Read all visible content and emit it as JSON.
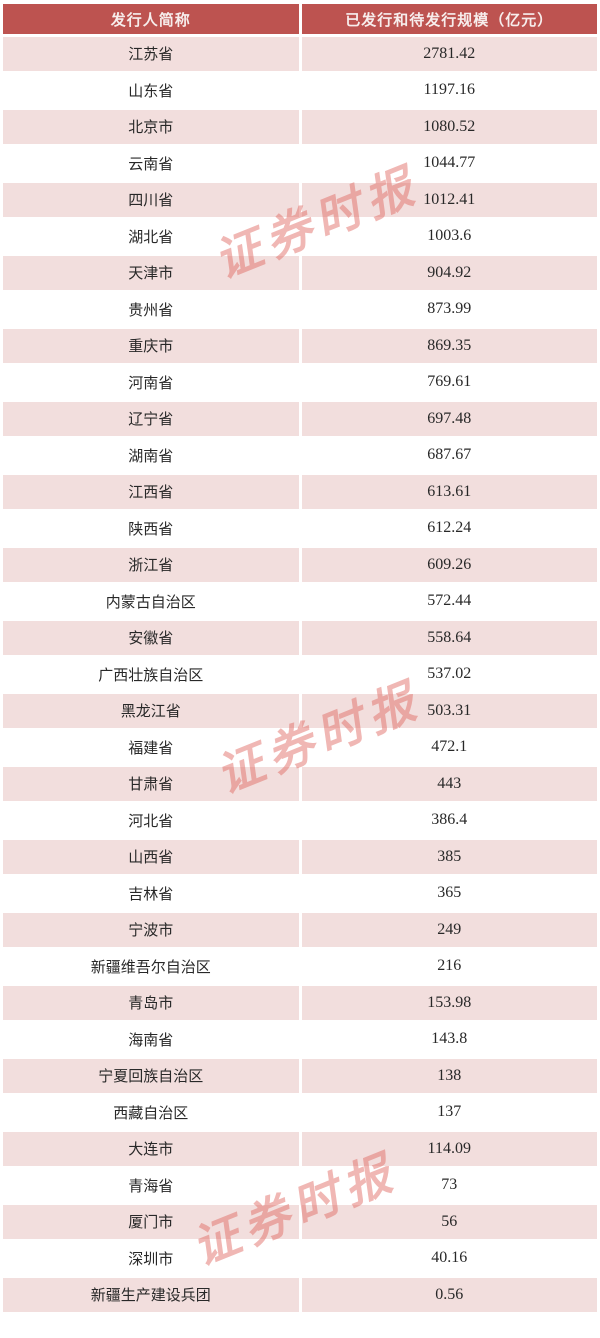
{
  "chart_data": {
    "type": "table",
    "columns": [
      "发行人简称",
      "已发行和待发行规模（亿元）"
    ],
    "rows": [
      [
        "江苏省",
        "2781.42"
      ],
      [
        "山东省",
        "1197.16"
      ],
      [
        "北京市",
        "1080.52"
      ],
      [
        "云南省",
        "1044.77"
      ],
      [
        "四川省",
        "1012.41"
      ],
      [
        "湖北省",
        "1003.6"
      ],
      [
        "天津市",
        "904.92"
      ],
      [
        "贵州省",
        "873.99"
      ],
      [
        "重庆市",
        "869.35"
      ],
      [
        "河南省",
        "769.61"
      ],
      [
        "辽宁省",
        "697.48"
      ],
      [
        "湖南省",
        "687.67"
      ],
      [
        "江西省",
        "613.61"
      ],
      [
        "陕西省",
        "612.24"
      ],
      [
        "浙江省",
        "609.26"
      ],
      [
        "内蒙古自治区",
        "572.44"
      ],
      [
        "安徽省",
        "558.64"
      ],
      [
        "广西壮族自治区",
        "537.02"
      ],
      [
        "黑龙江省",
        "503.31"
      ],
      [
        "福建省",
        "472.1"
      ],
      [
        "甘肃省",
        "443"
      ],
      [
        "河北省",
        "386.4"
      ],
      [
        "山西省",
        "385"
      ],
      [
        "吉林省",
        "365"
      ],
      [
        "宁波市",
        "249"
      ],
      [
        "新疆维吾尔自治区",
        "216"
      ],
      [
        "青岛市",
        "153.98"
      ],
      [
        "海南省",
        "143.8"
      ],
      [
        "宁夏回族自治区",
        "138"
      ],
      [
        "西藏自治区",
        "137"
      ],
      [
        "大连市",
        "114.09"
      ],
      [
        "青海省",
        "73"
      ],
      [
        "厦门市",
        "56"
      ],
      [
        "深圳市",
        "40.16"
      ],
      [
        "新疆生产建设兵团",
        "0.56"
      ]
    ],
    "layout": {
      "header_style": "dark-red band, white bold text",
      "row_striping": "odd rows light pink, even rows white",
      "alignment": "all cells centered"
    }
  },
  "watermark": {
    "text": "证券时报"
  },
  "colors": {
    "header_bg": "#bd5350",
    "header_text": "#f7edec",
    "row_pink": "#f2dedd",
    "row_white": "#ffffff",
    "body_text": "#282828",
    "watermark": "#e06a63"
  }
}
